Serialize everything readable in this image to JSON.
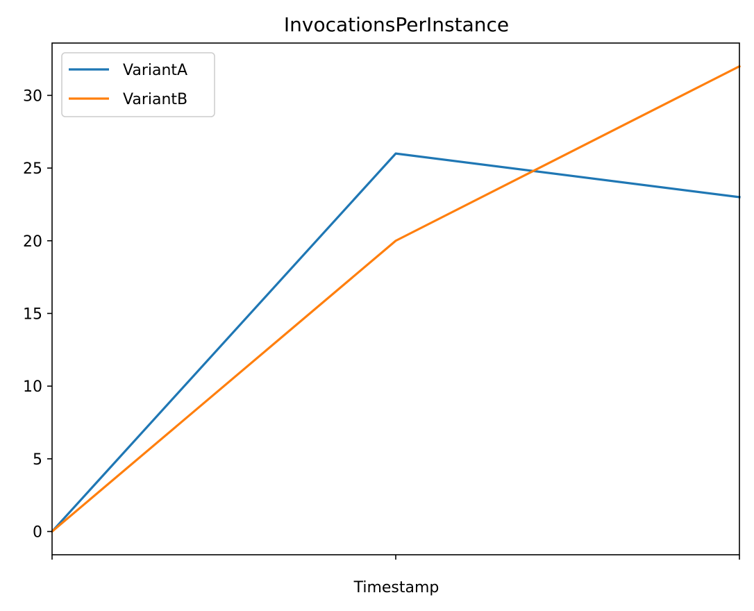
{
  "chart_data": {
    "type": "line",
    "title": "InvocationsPerInstance",
    "xlabel": "Timestamp",
    "ylabel": "",
    "x": [
      0,
      1,
      2
    ],
    "xlim": [
      0,
      2
    ],
    "ylim": [
      -1.6,
      33.6
    ],
    "yticks": [
      0,
      5,
      10,
      15,
      20,
      25,
      30
    ],
    "xticks": [
      0,
      1,
      2
    ],
    "grid": false,
    "legend_position": "top-left",
    "series": [
      {
        "name": "VariantA",
        "color": "#1f77b4",
        "values": [
          0,
          26,
          23
        ]
      },
      {
        "name": "VariantB",
        "color": "#ff7f0e",
        "values": [
          0,
          20,
          32
        ]
      }
    ]
  }
}
